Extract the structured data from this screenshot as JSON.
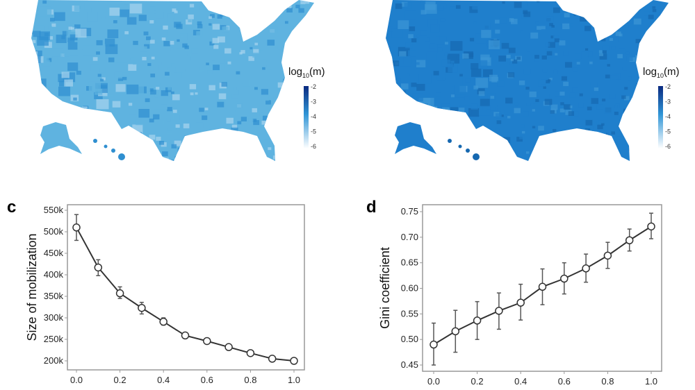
{
  "maps": [
    {
      "id": "a",
      "colorbar_title": "log",
      "colorbar_sub": "10",
      "colorbar_paren": "(m)",
      "ticks": [
        "-2",
        "-3",
        "-4",
        "-5",
        "-6"
      ],
      "fill": "#5fb3e0",
      "fill_dark": "#2f8fd0"
    },
    {
      "id": "b",
      "colorbar_title": "log",
      "colorbar_sub": "10",
      "colorbar_paren": "(m)",
      "ticks": [
        "-2",
        "-3",
        "-4",
        "-5",
        "-6"
      ],
      "fill": "#1f7fcc",
      "fill_dark": "#1668b0"
    }
  ],
  "colors": {
    "cbar_top": "#0a2a80",
    "cbar_mid": "#2f95d6",
    "cbar_bottom": "#ffffff",
    "line": "#333333"
  },
  "chart_data": [
    {
      "panel": "c",
      "type": "line",
      "ylabel": "Size of mobilization",
      "xlabel": "",
      "x": [
        0.0,
        0.1,
        0.2,
        0.3,
        0.4,
        0.5,
        0.6,
        0.7,
        0.8,
        0.9,
        1.0
      ],
      "y": [
        510000,
        417000,
        357000,
        323000,
        291000,
        259000,
        246000,
        232000,
        218000,
        205000,
        200000
      ],
      "err_low": [
        480000,
        398000,
        345000,
        309000,
        283000,
        254000,
        241000,
        228000,
        214000,
        202000,
        197000
      ],
      "err_high": [
        540000,
        435000,
        372000,
        336000,
        300000,
        264000,
        251000,
        236000,
        222000,
        208000,
        203000
      ],
      "xlim": [
        0,
        1
      ],
      "ylim": [
        200000,
        550000
      ],
      "xticks": [
        "0.0",
        "0.2",
        "0.4",
        "0.6",
        "0.8",
        "1.0"
      ],
      "yticks": [
        "200k",
        "250k",
        "300k",
        "350k",
        "400k",
        "450k",
        "500k",
        "550k"
      ]
    },
    {
      "panel": "d",
      "type": "line",
      "ylabel": "Gini coefficient",
      "xlabel": "",
      "x": [
        0.0,
        0.1,
        0.2,
        0.3,
        0.4,
        0.5,
        0.6,
        0.7,
        0.8,
        0.9,
        1.0
      ],
      "y": [
        0.49,
        0.516,
        0.537,
        0.556,
        0.572,
        0.603,
        0.619,
        0.639,
        0.664,
        0.694,
        0.721
      ],
      "err_low": [
        0.45,
        0.475,
        0.5,
        0.52,
        0.538,
        0.568,
        0.589,
        0.612,
        0.639,
        0.673,
        0.697
      ],
      "err_high": [
        0.532,
        0.557,
        0.574,
        0.591,
        0.608,
        0.638,
        0.65,
        0.667,
        0.69,
        0.716,
        0.747
      ],
      "xlim": [
        0,
        1
      ],
      "ylim": [
        0.45,
        0.75
      ],
      "xticks": [
        "0.0",
        "0.2",
        "0.4",
        "0.6",
        "0.8",
        "1.0"
      ],
      "yticks": [
        "0.45",
        "0.50",
        "0.55",
        "0.60",
        "0.65",
        "0.70",
        "0.75"
      ]
    }
  ]
}
